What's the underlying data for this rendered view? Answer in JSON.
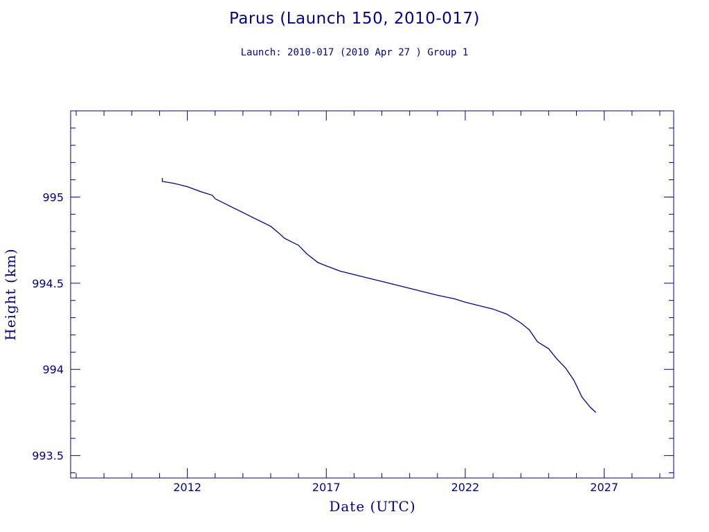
{
  "chart_data": {
    "type": "line",
    "title": "Parus (Launch 150, 2010-017)",
    "subtitle": "Launch: 2010-017  (2010 Apr 27 )  Group 1",
    "xlabel": "Date (UTC)",
    "ylabel": "Height (km)",
    "xlim": [
      2007.8,
      2029.5
    ],
    "ylim": [
      993.37,
      995.5
    ],
    "x_ticks": [
      "2012",
      "2017",
      "2022",
      "2027"
    ],
    "y_ticks": [
      "993.5",
      "994",
      "994.5",
      "995"
    ],
    "grid": false,
    "colors": {
      "line": "#00008b",
      "axes": "#00008b",
      "text": "#00008b"
    },
    "series": [
      {
        "points": [
          [
            2011.1,
            995.11
          ],
          [
            2011.1,
            995.09
          ],
          [
            2011.5,
            995.08
          ],
          [
            2012.0,
            995.06
          ],
          [
            2012.5,
            995.03
          ],
          [
            2012.9,
            995.01
          ],
          [
            2013.0,
            994.99
          ],
          [
            2013.5,
            994.95
          ],
          [
            2014.0,
            994.91
          ],
          [
            2014.5,
            994.87
          ],
          [
            2015.0,
            994.83
          ],
          [
            2015.3,
            994.79
          ],
          [
            2015.5,
            994.76
          ],
          [
            2016.0,
            994.72
          ],
          [
            2016.3,
            994.67
          ],
          [
            2016.7,
            994.62
          ],
          [
            2017.0,
            994.6
          ],
          [
            2017.5,
            994.57
          ],
          [
            2018.0,
            994.55
          ],
          [
            2018.5,
            994.53
          ],
          [
            2019.0,
            994.51
          ],
          [
            2019.5,
            994.49
          ],
          [
            2020.0,
            994.47
          ],
          [
            2020.5,
            994.45
          ],
          [
            2021.0,
            994.43
          ],
          [
            2021.3,
            994.42
          ],
          [
            2021.6,
            994.41
          ],
          [
            2022.0,
            994.39
          ],
          [
            2022.5,
            994.37
          ],
          [
            2023.0,
            994.35
          ],
          [
            2023.5,
            994.32
          ],
          [
            2024.0,
            994.27
          ],
          [
            2024.3,
            994.23
          ],
          [
            2024.6,
            994.16
          ],
          [
            2025.0,
            994.12
          ],
          [
            2025.3,
            994.06
          ],
          [
            2025.6,
            994.01
          ],
          [
            2025.9,
            993.94
          ],
          [
            2026.2,
            993.84
          ],
          [
            2026.5,
            993.78
          ],
          [
            2026.7,
            993.75
          ]
        ]
      }
    ]
  }
}
